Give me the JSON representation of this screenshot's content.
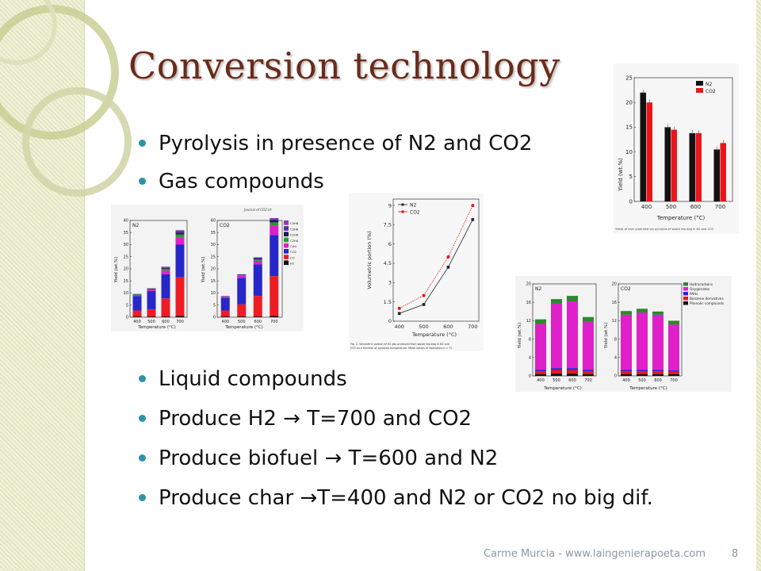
{
  "slide": {
    "title": "Conversion technology",
    "bullets_top": [
      "Pyrolysis in presence of N2 and CO2",
      "Gas compounds"
    ],
    "bullets_bottom": [
      "Liquid compounds",
      "Produce H2 → T=700 and CO2",
      "Produce biofuel → T=600 and N2",
      "Produce char →T=400 and N2 or CO2 no big dif."
    ],
    "footer": "Carme Murcia - www.laingenierapoeta.com",
    "page_number": "8"
  },
  "colors": {
    "title": "#6a2b1b",
    "bullet": "#2e92a6",
    "footer": "#8a98a2",
    "band": "#eef0d5",
    "ring": "#c9cf95"
  },
  "figures": {
    "char_yield": {
      "ylabel": "Yield (wt.%)",
      "xlabel": "Temperature (°C)",
      "legend": [
        "N2",
        "CO2"
      ],
      "caption": "Yields of char produced via pyrolysis of waste tea bag in N2 and CO2"
    },
    "gas_yield": {
      "ylabel": "Yield (wt.%)",
      "xlabel": "Temperature (°C)",
      "panels": [
        "N2",
        "CO2"
      ],
      "legend": [
        "C4H8",
        "C3H6",
        "C2H6",
        "C2H4",
        "CH4",
        "CO2",
        "CO",
        "H2"
      ],
      "journal": "Journal of CO2 Ut"
    },
    "h2_volumetric": {
      "ylabel": "Volumetric portion (%)",
      "xlabel": "Temperature (°C)",
      "legend": [
        "N2",
        "CO2"
      ],
      "caption_line1": "Fig. 2. Volumetric portion of H2 gas produced from waste tea bag in N2 and",
      "caption_line2": "CO2 as a function of pyrolysis temperature. Mean values of replicates (n = 3)"
    },
    "liquid_yield": {
      "ylabel": "Yield (wt.%)",
      "xlabel": "Temperature (°C)",
      "panels": [
        "N2",
        "CO2"
      ],
      "legend": [
        "Hydrocarbons",
        "Oxygenates",
        "PAHs",
        "Benzene derivatives",
        "Phenolic compounds"
      ]
    }
  },
  "chart_data": [
    {
      "type": "bar",
      "name_ref": "char_yield",
      "categories": [
        "400",
        "500",
        "600",
        "700"
      ],
      "series": [
        {
          "name": "N2",
          "values": [
            22.0,
            15.0,
            13.8,
            10.5
          ],
          "color": "#111111"
        },
        {
          "name": "CO2",
          "values": [
            20.0,
            14.5,
            13.8,
            11.8
          ],
          "color": "#e8161b"
        }
      ],
      "ylim": [
        0,
        25
      ],
      "yticks": [
        0,
        5,
        10,
        15,
        20,
        25
      ]
    },
    {
      "type": "bar",
      "name_ref": "gas_yield",
      "stacked": true,
      "categories": [
        "400",
        "500",
        "600",
        "700"
      ],
      "stack_colors": [
        "#111111",
        "#ee1c24",
        "#2727c9",
        "#e020c8",
        "#2a9a2a",
        "#1a1a5a",
        "#5a2ca0",
        "#8a3fb8"
      ],
      "panels": [
        {
          "name": "N2",
          "stacks": [
            [
              0.3,
              2.5,
              6.0,
              0.4,
              0.2,
              0.1,
              0.1,
              0.1
            ],
            [
              0.3,
              3.0,
              7.5,
              0.5,
              0.3,
              0.2,
              0.1,
              0.1
            ],
            [
              0.3,
              7.5,
              10.0,
              1.5,
              0.6,
              0.4,
              0.3,
              0.3
            ],
            [
              0.5,
              16.0,
              13.5,
              3.0,
              1.2,
              0.8,
              0.6,
              0.4
            ]
          ]
        },
        {
          "name": "CO2",
          "stacks": [
            [
              0.3,
              2.5,
              5.3,
              0.3,
              0.1,
              0.1,
              0.1,
              0.1
            ],
            [
              0.3,
              5.0,
              11.0,
              0.8,
              0.3,
              0.2,
              0.1,
              0.1
            ],
            [
              0.3,
              8.5,
              13.0,
              1.5,
              0.6,
              0.4,
              0.3,
              0.2
            ],
            [
              0.5,
              16.5,
              17.0,
              4.0,
              1.2,
              0.8,
              0.5,
              0.5
            ]
          ]
        }
      ],
      "ylim": [
        0,
        40
      ],
      "yticks": [
        0,
        5,
        10,
        15,
        20,
        25,
        30,
        35,
        40
      ]
    },
    {
      "type": "line",
      "name_ref": "h2_volumetric",
      "x": [
        400,
        500,
        600,
        700
      ],
      "series": [
        {
          "name": "N2",
          "values": [
            0.6,
            1.3,
            4.2,
            7.9
          ],
          "color": "#222222"
        },
        {
          "name": "CO2",
          "values": [
            1.0,
            2.0,
            5.0,
            9.0
          ],
          "color": "#e8161b"
        }
      ],
      "ylim": [
        0,
        9.5
      ],
      "yticks": [
        0.0,
        1.5,
        3.0,
        4.5,
        6.0,
        7.5,
        9.0
      ]
    },
    {
      "type": "bar",
      "name_ref": "liquid_yield",
      "stacked": true,
      "categories": [
        "400",
        "500",
        "600",
        "700"
      ],
      "stack_colors": [
        "#111111",
        "#e8161b",
        "#2727c9",
        "#e020c8",
        "#2a8a2a"
      ],
      "panels": [
        {
          "name": "N2",
          "stacks": [
            [
              0.4,
              0.6,
              0.3,
              10.0,
              1.0
            ],
            [
              0.5,
              0.8,
              0.4,
              14.0,
              1.0
            ],
            [
              0.5,
              0.8,
              0.4,
              14.5,
              1.2
            ],
            [
              0.4,
              0.6,
              0.3,
              10.5,
              1.0
            ]
          ]
        },
        {
          "name": "CO2",
          "stacks": [
            [
              0.4,
              0.6,
              0.3,
              12.0,
              0.8
            ],
            [
              0.4,
              0.6,
              0.3,
              12.5,
              0.8
            ],
            [
              0.4,
              0.6,
              0.3,
              12.0,
              0.7
            ],
            [
              0.4,
              0.5,
              0.3,
              10.0,
              0.8
            ]
          ]
        }
      ],
      "ylim": [
        0,
        20
      ],
      "yticks": [
        0,
        4,
        8,
        12,
        16,
        20
      ]
    }
  ]
}
